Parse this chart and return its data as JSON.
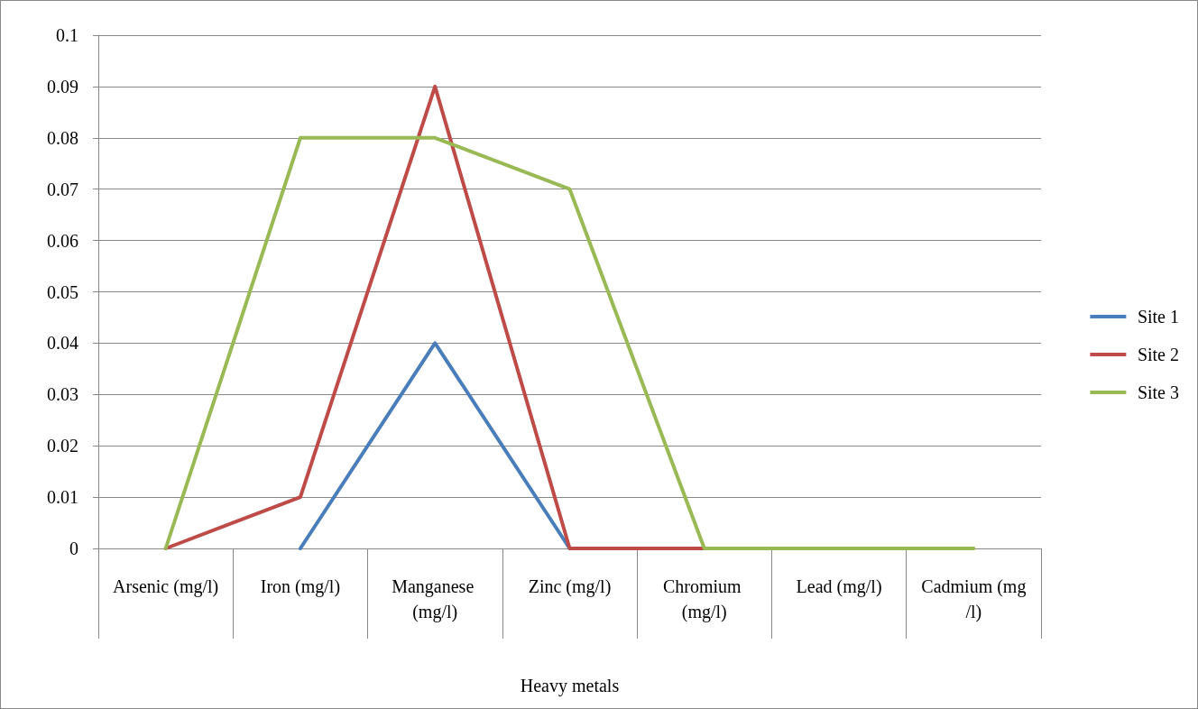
{
  "chart_data": {
    "type": "line",
    "xlabel": "Heavy metals",
    "categories": [
      "Arsenic (mg/l)",
      "Iron (mg/l)",
      "Manganese (mg/l)",
      "Zinc (mg/l)",
      "Chromium (mg/l)",
      "Lead (mg/l)",
      "Cadmium (mg/l)"
    ],
    "series": [
      {
        "name": "Site 1",
        "color": "#4a7ebb",
        "values": [
          null,
          0,
          0.04,
          0,
          null,
          null,
          null
        ]
      },
      {
        "name": "Site 2",
        "color": "#be4b48",
        "values": [
          0,
          0.01,
          0.09,
          0,
          0,
          null,
          null
        ]
      },
      {
        "name": "Site 3",
        "color": "#98b954",
        "values": [
          0,
          0.08,
          0.08,
          0.07,
          0,
          0,
          0
        ]
      }
    ],
    "ylim": [
      0,
      0.1
    ],
    "yticks": [
      0,
      0.01,
      0.02,
      0.03,
      0.04,
      0.05,
      0.06,
      0.07,
      0.08,
      0.09,
      0.1
    ],
    "grid": "y",
    "legend": "right",
    "marker": "none",
    "line_style": "solid"
  }
}
